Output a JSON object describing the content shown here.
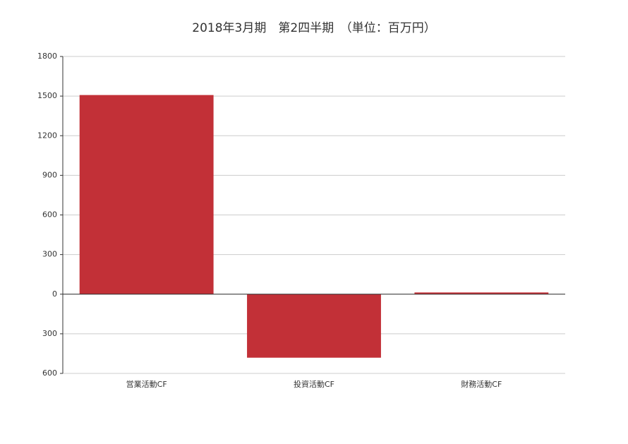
{
  "chart_data": {
    "type": "bar",
    "title": "2018年3月期　第2四半期　（単位：百万円）",
    "categories": [
      "営業活動CF",
      "投資活動CF",
      "財務活動CF"
    ],
    "values": [
      1508,
      -481,
      13
    ],
    "color": "#c23037",
    "ylim": [
      -600,
      1800
    ],
    "yticks": [
      {
        "value": -600,
        "label": "600"
      },
      {
        "value": -300,
        "label": "300"
      },
      0,
      300,
      600,
      900,
      1200,
      1500,
      1800
    ],
    "grid": true
  }
}
